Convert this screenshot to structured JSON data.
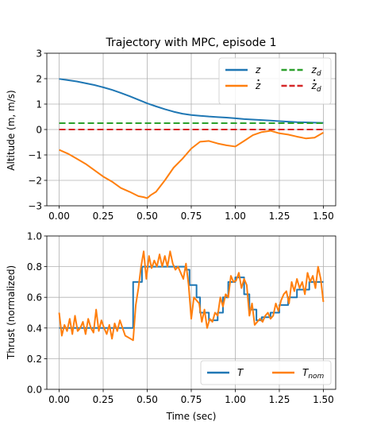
{
  "chart_data": [
    {
      "type": "line",
      "title": "Trajectory with MPC, episode 1",
      "xlabel": "",
      "ylabel": "Altitude (m, m/s)",
      "xlim": [
        -0.07,
        1.57
      ],
      "ylim": [
        -3,
        3
      ],
      "xticks": [
        0.0,
        0.25,
        0.5,
        0.75,
        1.0,
        1.25,
        1.5
      ],
      "xtick_labels": [
        "0.00",
        "0.25",
        "0.50",
        "0.75",
        "1.00",
        "1.25",
        "1.50"
      ],
      "yticks": [
        -3,
        -2,
        -1,
        0,
        1,
        2,
        3
      ],
      "ytick_labels": [
        "−3",
        "−2",
        "−1",
        "0",
        "1",
        "2",
        "3"
      ],
      "grid": true,
      "legend_position": "top-right",
      "series": [
        {
          "name": "z",
          "label_main": "z",
          "label_sub": "",
          "label_dot": false,
          "color": "#1f77b4",
          "dash": "solid",
          "x": [
            0.0,
            0.05,
            0.1,
            0.15,
            0.2,
            0.25,
            0.3,
            0.35,
            0.4,
            0.45,
            0.5,
            0.55,
            0.6,
            0.65,
            0.7,
            0.75,
            0.8,
            0.85,
            0.9,
            0.95,
            1.0,
            1.05,
            1.1,
            1.15,
            1.2,
            1.25,
            1.3,
            1.35,
            1.4,
            1.45,
            1.5
          ],
          "y": [
            1.99,
            1.94,
            1.89,
            1.82,
            1.75,
            1.66,
            1.56,
            1.44,
            1.31,
            1.17,
            1.03,
            0.91,
            0.8,
            0.7,
            0.62,
            0.57,
            0.54,
            0.51,
            0.49,
            0.47,
            0.44,
            0.41,
            0.39,
            0.37,
            0.35,
            0.33,
            0.31,
            0.29,
            0.28,
            0.27,
            0.26
          ]
        },
        {
          "name": "ż",
          "label_main": "z",
          "label_sub": "",
          "label_dot": true,
          "color": "#ff7f0e",
          "dash": "solid",
          "x": [
            0.0,
            0.05,
            0.1,
            0.15,
            0.2,
            0.25,
            0.3,
            0.35,
            0.4,
            0.45,
            0.48,
            0.5,
            0.52,
            0.55,
            0.6,
            0.65,
            0.7,
            0.75,
            0.8,
            0.85,
            0.9,
            0.95,
            1.0,
            1.05,
            1.1,
            1.15,
            1.2,
            1.25,
            1.3,
            1.35,
            1.4,
            1.45,
            1.5
          ],
          "y": [
            -0.8,
            -0.95,
            -1.15,
            -1.35,
            -1.6,
            -1.85,
            -2.05,
            -2.3,
            -2.45,
            -2.62,
            -2.66,
            -2.7,
            -2.58,
            -2.45,
            -2.0,
            -1.5,
            -1.15,
            -0.75,
            -0.48,
            -0.45,
            -0.55,
            -0.62,
            -0.67,
            -0.45,
            -0.22,
            -0.1,
            -0.05,
            -0.15,
            -0.2,
            -0.28,
            -0.35,
            -0.32,
            -0.12
          ]
        },
        {
          "name": "z_d",
          "label_main": "z",
          "label_sub": "d",
          "label_dot": false,
          "color": "#2ca02c",
          "dash": "dashed",
          "x": [
            0.0,
            1.5
          ],
          "y": [
            0.25,
            0.25
          ]
        },
        {
          "name": "ż_d",
          "label_main": "z",
          "label_sub": "d",
          "label_dot": true,
          "color": "#d62728",
          "dash": "dashed",
          "x": [
            0.0,
            1.5
          ],
          "y": [
            0.0,
            0.0
          ]
        }
      ]
    },
    {
      "type": "line",
      "title": "",
      "xlabel": "Time (sec)",
      "ylabel": "Thrust (normalized)",
      "xlim": [
        -0.07,
        1.57
      ],
      "ylim": [
        0.0,
        1.0
      ],
      "xticks": [
        0.0,
        0.25,
        0.5,
        0.75,
        1.0,
        1.25,
        1.5
      ],
      "xtick_labels": [
        "0.00",
        "0.25",
        "0.50",
        "0.75",
        "1.00",
        "1.25",
        "1.50"
      ],
      "yticks": [
        0.0,
        0.2,
        0.4,
        0.6,
        0.8,
        1.0
      ],
      "ytick_labels": [
        "0.0",
        "0.2",
        "0.4",
        "0.6",
        "0.8",
        "1.0"
      ],
      "grid": true,
      "legend_position": "lower-right",
      "series": [
        {
          "name": "T",
          "label_main": "T",
          "label_sub": "",
          "label_dot": false,
          "color": "#1f77b4",
          "dash": "solid",
          "x": [
            0.0,
            0.42,
            0.42,
            0.47,
            0.47,
            0.72,
            0.72,
            0.74,
            0.74,
            0.78,
            0.78,
            0.8,
            0.8,
            0.85,
            0.85,
            0.9,
            0.9,
            0.93,
            0.93,
            0.96,
            0.96,
            1.0,
            1.0,
            1.05,
            1.05,
            1.08,
            1.08,
            1.12,
            1.12,
            1.15,
            1.15,
            1.2,
            1.2,
            1.25,
            1.25,
            1.3,
            1.3,
            1.35,
            1.35,
            1.42,
            1.42,
            1.47,
            1.47,
            1.5
          ],
          "y": [
            0.4,
            0.4,
            0.7,
            0.7,
            0.8,
            0.8,
            0.78,
            0.78,
            0.68,
            0.68,
            0.6,
            0.6,
            0.5,
            0.5,
            0.45,
            0.45,
            0.5,
            0.5,
            0.6,
            0.6,
            0.7,
            0.7,
            0.73,
            0.73,
            0.62,
            0.62,
            0.52,
            0.52,
            0.45,
            0.45,
            0.47,
            0.47,
            0.5,
            0.5,
            0.55,
            0.55,
            0.6,
            0.6,
            0.65,
            0.65,
            0.7,
            0.7,
            0.7,
            0.7
          ]
        },
        {
          "name": "T_nom",
          "label_main": "T",
          "label_sub": "nom",
          "label_dot": false,
          "color": "#ff7f0e",
          "dash": "solid",
          "x": [
            0.0,
            0.015,
            0.03,
            0.045,
            0.06,
            0.075,
            0.09,
            0.105,
            0.12,
            0.135,
            0.15,
            0.165,
            0.18,
            0.195,
            0.21,
            0.225,
            0.24,
            0.255,
            0.27,
            0.285,
            0.3,
            0.315,
            0.33,
            0.345,
            0.36,
            0.375,
            0.39,
            0.405,
            0.42,
            0.435,
            0.45,
            0.465,
            0.48,
            0.495,
            0.51,
            0.525,
            0.54,
            0.555,
            0.57,
            0.585,
            0.6,
            0.615,
            0.63,
            0.645,
            0.66,
            0.675,
            0.69,
            0.705,
            0.72,
            0.735,
            0.75,
            0.765,
            0.78,
            0.795,
            0.81,
            0.825,
            0.84,
            0.855,
            0.87,
            0.885,
            0.9,
            0.915,
            0.93,
            0.945,
            0.96,
            0.975,
            0.99,
            1.005,
            1.02,
            1.035,
            1.05,
            1.065,
            1.08,
            1.095,
            1.11,
            1.125,
            1.14,
            1.155,
            1.17,
            1.185,
            1.2,
            1.215,
            1.23,
            1.245,
            1.26,
            1.275,
            1.29,
            1.305,
            1.32,
            1.335,
            1.35,
            1.365,
            1.38,
            1.395,
            1.41,
            1.425,
            1.44,
            1.455,
            1.47,
            1.485,
            1.5
          ],
          "y": [
            0.5,
            0.35,
            0.42,
            0.38,
            0.46,
            0.36,
            0.48,
            0.38,
            0.4,
            0.44,
            0.36,
            0.46,
            0.4,
            0.37,
            0.52,
            0.38,
            0.45,
            0.4,
            0.36,
            0.42,
            0.33,
            0.43,
            0.38,
            0.45,
            0.4,
            0.35,
            0.34,
            0.33,
            0.32,
            0.55,
            0.66,
            0.8,
            0.9,
            0.72,
            0.87,
            0.79,
            0.84,
            0.8,
            0.88,
            0.8,
            0.87,
            0.8,
            0.9,
            0.82,
            0.78,
            0.8,
            0.76,
            0.72,
            0.82,
            0.68,
            0.46,
            0.6,
            0.58,
            0.56,
            0.44,
            0.52,
            0.4,
            0.46,
            0.44,
            0.5,
            0.48,
            0.6,
            0.54,
            0.62,
            0.6,
            0.74,
            0.7,
            0.71,
            0.76,
            0.66,
            0.72,
            0.68,
            0.48,
            0.56,
            0.42,
            0.44,
            0.46,
            0.44,
            0.48,
            0.5,
            0.46,
            0.48,
            0.56,
            0.51,
            0.58,
            0.62,
            0.64,
            0.56,
            0.7,
            0.64,
            0.72,
            0.66,
            0.7,
            0.62,
            0.76,
            0.7,
            0.74,
            0.66,
            0.8,
            0.72,
            0.57
          ]
        }
      ]
    }
  ]
}
